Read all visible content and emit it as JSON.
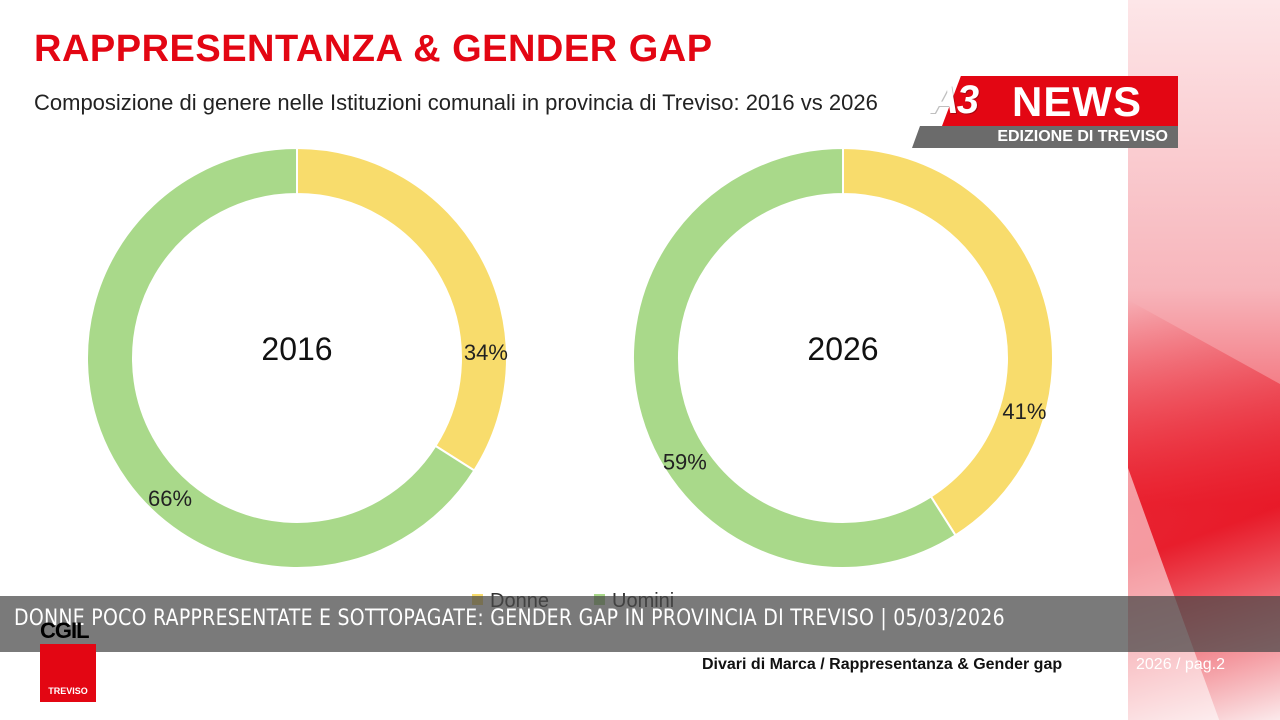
{
  "slide": {
    "title": "RAPPRESENTANZA & GENDER GAP",
    "subtitle": "Composizione di genere nelle Istituzioni comunali in provincia di Treviso: 2016 vs 2026",
    "footer_text": "Divari di Marca / Rappresentanza & Gender gap",
    "footer_page": "2026 / pag.2"
  },
  "broadcast": {
    "logo_a3": "A3",
    "logo_news": "NEWS",
    "logo_edition": "EDIZIONE DI TREVISO",
    "ticker": "DONNE POCO RAPPRESENTATE E SOTTOPAGATE: GENDER GAP IN PROVINCIA DI TREVISO | 05/03/2026"
  },
  "cgil": {
    "word": "CGIL",
    "city": "TREVISO"
  },
  "colors": {
    "donne": "#f8dc6c",
    "uomini": "#a9d98a",
    "accent": "#e30613"
  },
  "chart_data": [
    {
      "type": "pie",
      "donut": true,
      "center_label": "2016",
      "categories": [
        "Donne",
        "Uomini"
      ],
      "values": [
        34,
        66
      ],
      "labels": [
        "34%",
        "66%"
      ],
      "legend": "bottom"
    },
    {
      "type": "pie",
      "donut": true,
      "center_label": "2026",
      "categories": [
        "Donne",
        "Uomini"
      ],
      "values": [
        41,
        59
      ],
      "labels": [
        "41%",
        "59%"
      ],
      "legend": "bottom"
    }
  ],
  "legend": {
    "items": [
      "Donne",
      "Uomini"
    ]
  }
}
